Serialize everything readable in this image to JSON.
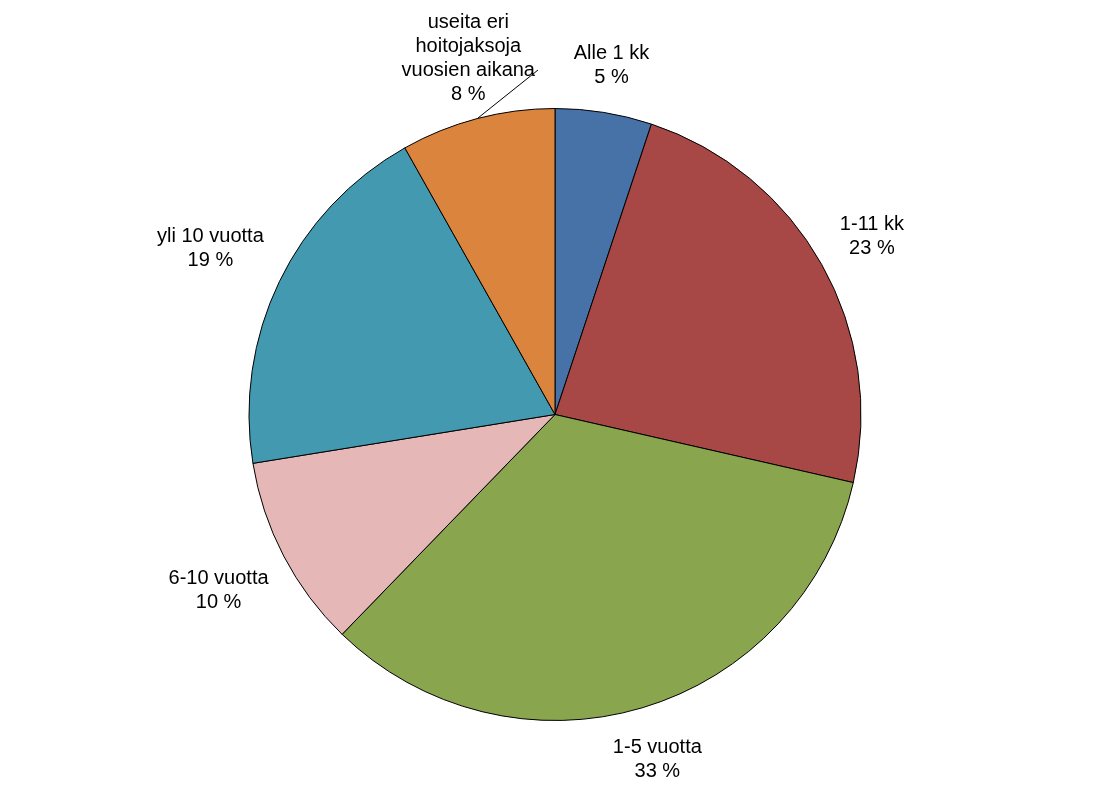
{
  "chart_data": {
    "type": "pie",
    "categories": [
      "Alle 1 kk",
      "1-11 kk",
      "1-5 vuotta",
      "6-10 vuotta",
      "yli 10 vuotta",
      "useita eri hoitojaksoja vuosien aikana"
    ],
    "values": [
      5,
      23,
      33,
      10,
      19,
      8
    ],
    "value_labels": [
      "5 %",
      "23 %",
      "33 %",
      "10 %",
      "19 %",
      "8 %"
    ],
    "colors": [
      "#4672a7",
      "#a84846",
      "#89a64e",
      "#e5b8b7",
      "#4299b0",
      "#db843d"
    ],
    "legend": false
  }
}
